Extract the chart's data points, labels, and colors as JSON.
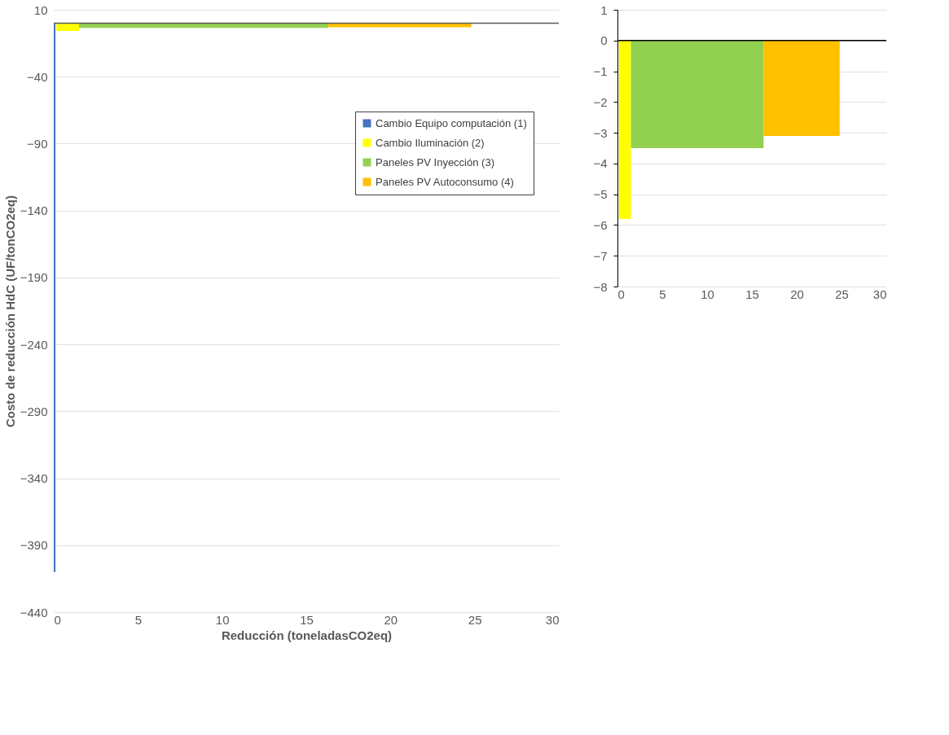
{
  "chart_data": [
    {
      "type": "area",
      "xlabel": "Reducción (toneladasCO2eq)",
      "ylabel": "Costo de reducción HdC (UF/tonCO2eq)",
      "xlim": [
        0,
        30
      ],
      "ylim": [
        -440,
        10
      ],
      "xticks": [
        0,
        5,
        10,
        15,
        20,
        25,
        30
      ],
      "yticks": [
        10,
        -40,
        -90,
        -140,
        -190,
        -240,
        -290,
        -340,
        -390,
        -440
      ],
      "grid": "y",
      "legend": "right",
      "ref_lines": [
        {
          "axis": "y",
          "value": 0,
          "color": "#595959"
        }
      ],
      "series": [
        {
          "name": "Cambio Equipo computación (1)",
          "color": "#4472c4",
          "x": [
            0,
            0.1
          ],
          "values": [
            -410,
            -410
          ]
        },
        {
          "name": "Cambio Iluminación (2)",
          "color": "#ffff00",
          "x": [
            0.15,
            1.5
          ],
          "values": [
            -5.8,
            -5.8
          ]
        },
        {
          "name": "Paneles PV Inyección (3)",
          "color": "#92d050",
          "x": [
            1.5,
            16.3
          ],
          "values": [
            -3.5,
            -3.5
          ]
        },
        {
          "name": "Paneles PV Autoconsumo (4)",
          "color": "#ffc000",
          "x": [
            16.3,
            24.8
          ],
          "values": [
            -3.1,
            -3.1
          ]
        }
      ]
    },
    {
      "type": "area",
      "xlim": [
        0,
        30
      ],
      "ylim": [
        -8,
        1
      ],
      "xticks": [
        0,
        5,
        10,
        15,
        20,
        25,
        30
      ],
      "yticks": [
        1,
        0,
        -1,
        -2,
        -3,
        -4,
        -5,
        -6,
        -7,
        -8
      ],
      "grid": "y",
      "ref_lines": [
        {
          "axis": "y",
          "value": 0,
          "color": "#000000"
        }
      ],
      "series": [
        {
          "color": "#ffff00",
          "x": [
            0.15,
            1.5
          ],
          "values": [
            -5.8,
            -5.8
          ]
        },
        {
          "color": "#92d050",
          "x": [
            1.5,
            16.3
          ],
          "values": [
            -3.5,
            -3.5
          ]
        },
        {
          "color": "#ffc000",
          "x": [
            16.3,
            24.8
          ],
          "values": [
            -3.1,
            -3.1
          ]
        }
      ]
    }
  ]
}
